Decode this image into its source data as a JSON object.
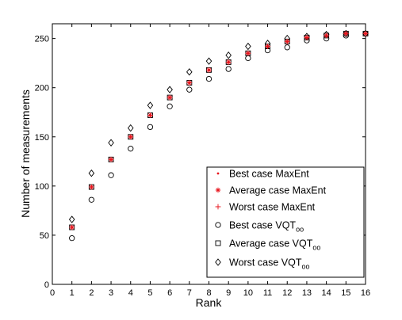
{
  "chart_data": {
    "type": "scatter",
    "xlabel": "Rank",
    "ylabel": "Number of measurements",
    "xlim": [
      0,
      16
    ],
    "ylim": [
      0,
      265
    ],
    "xticks": [
      0,
      1,
      2,
      3,
      4,
      5,
      6,
      7,
      8,
      9,
      10,
      11,
      12,
      13,
      14,
      15,
      16
    ],
    "yticks": [
      0,
      50,
      100,
      150,
      200,
      250
    ],
    "grid": false,
    "legend_position": "bottom-right",
    "x": [
      1,
      2,
      3,
      4,
      5,
      6,
      7,
      8,
      9,
      10,
      11,
      12,
      13,
      14,
      15,
      16
    ],
    "series": [
      {
        "name": "Best case MaxEnt",
        "marker": "dot",
        "color": "#e8141c",
        "values": [
          58,
          99,
          127,
          150,
          172,
          190,
          205,
          218,
          226,
          235,
          242,
          247,
          251,
          253,
          255,
          255
        ]
      },
      {
        "name": "Average case MaxEnt",
        "marker": "asterisk",
        "color": "#e8141c",
        "values": [
          58,
          99,
          127,
          150,
          172,
          190,
          205,
          218,
          226,
          235,
          242,
          247,
          251,
          253,
          255,
          255
        ]
      },
      {
        "name": "Worst case MaxEnt",
        "marker": "plus",
        "color": "#e8141c",
        "values": [
          58,
          99,
          127,
          150,
          172,
          190,
          205,
          218,
          226,
          235,
          242,
          247,
          251,
          253,
          255,
          255
        ]
      },
      {
        "name": "Best case VQT",
        "name_sub": "oo",
        "marker": "circle",
        "color": "#000000",
        "values": [
          47,
          86,
          111,
          138,
          160,
          181,
          198,
          209,
          219,
          230,
          238,
          241,
          248,
          250,
          253,
          255
        ]
      },
      {
        "name": "Average case VQT",
        "name_sub": "oo",
        "marker": "square",
        "color": "#000000",
        "values": [
          58,
          99,
          127,
          150,
          172,
          190,
          205,
          218,
          226,
          235,
          242,
          247,
          251,
          253,
          255,
          255
        ]
      },
      {
        "name": "Worst case VQT",
        "name_sub": "oo",
        "marker": "diamond",
        "color": "#000000",
        "values": [
          66,
          113,
          144,
          159,
          182,
          198,
          216,
          227,
          233,
          242,
          245,
          250,
          252,
          254,
          255,
          255
        ]
      }
    ]
  }
}
